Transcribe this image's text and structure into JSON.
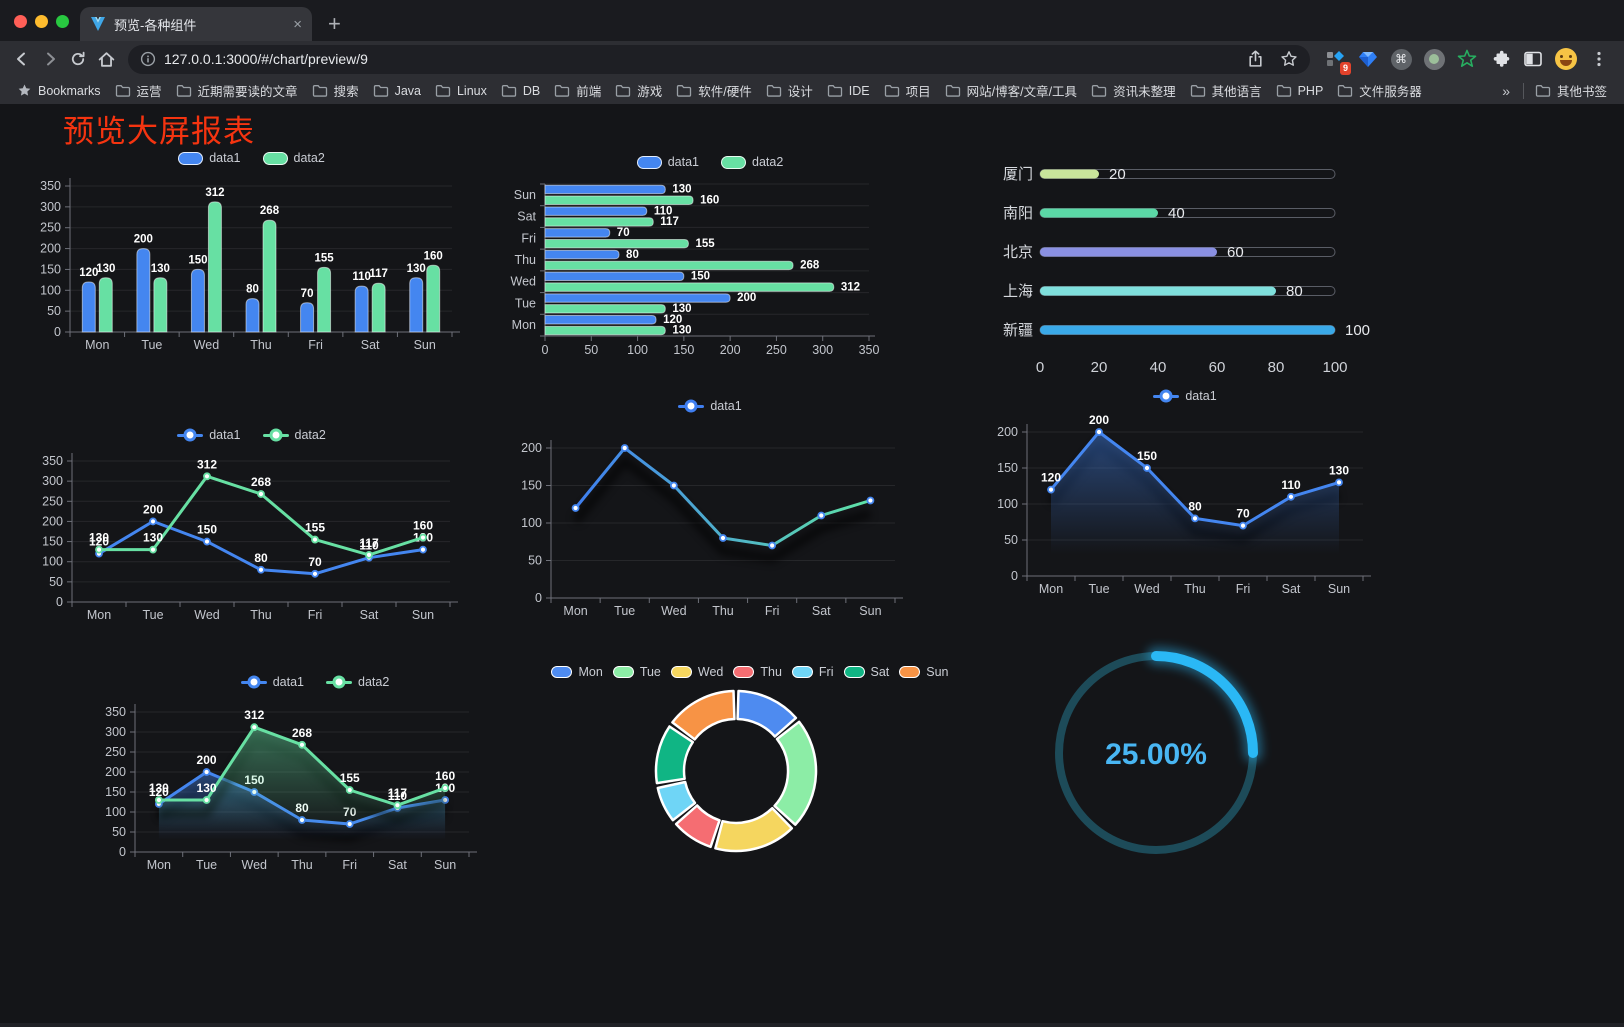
{
  "browser": {
    "tab": {
      "title": "预览-各种组件",
      "close_glyph": "×",
      "new_tab_glyph": "+"
    },
    "url": "127.0.0.1:3000/#/chart/preview/9",
    "extensions_badge": "9",
    "bookmarks_label": "Bookmarks",
    "bookmarks": [
      "运营",
      "近期需要读的文章",
      "搜索",
      "Java",
      "Linux",
      "DB",
      "前端",
      "游戏",
      "软件/硬件",
      "设计",
      "IDE",
      "项目",
      "网站/博客/文章/工具",
      "资讯未整理",
      "其他语言",
      "PHP",
      "文件服务器"
    ],
    "bookmarks_overflow": "»",
    "other_bookmarks": "其他书签"
  },
  "page": {
    "title": "预览大屏报表",
    "title_color": "#f53410",
    "background": "#141518"
  },
  "colors": {
    "data1": "#4486f0",
    "data2": "#67e0a3",
    "axis": "#6E7079",
    "tick_label": "#c3c6cd"
  },
  "chart_data": [
    {
      "id": "bar-grouped",
      "type": "bar",
      "categories": [
        "Mon",
        "Tue",
        "Wed",
        "Thu",
        "Fri",
        "Sat",
        "Sun"
      ],
      "series": [
        {
          "name": "data1",
          "color": "#4486f0",
          "values": [
            120,
            200,
            150,
            80,
            70,
            110,
            130
          ]
        },
        {
          "name": "data2",
          "color": "#67e0a3",
          "values": [
            130,
            130,
            312,
            268,
            155,
            117,
            160
          ]
        }
      ],
      "ylim": [
        0,
        350
      ],
      "yticks": [
        0,
        50,
        100,
        150,
        200,
        250,
        300,
        350
      ],
      "legend_position": "top",
      "value_labels": true,
      "grid": true
    },
    {
      "id": "bar-horizontal",
      "type": "bar",
      "orientation": "horizontal",
      "categories": [
        "Mon",
        "Tue",
        "Wed",
        "Thu",
        "Fri",
        "Sat",
        "Sun"
      ],
      "display_order_top_to_bottom": [
        "Sun",
        "Sat",
        "Fri",
        "Thu",
        "Wed",
        "Tue",
        "Mon"
      ],
      "series": [
        {
          "name": "data1",
          "color": "#4486f0",
          "values": [
            120,
            200,
            150,
            80,
            70,
            110,
            130
          ]
        },
        {
          "name": "data2",
          "color": "#67e0a3",
          "values": [
            130,
            130,
            312,
            268,
            155,
            117,
            160
          ]
        }
      ],
      "xlim": [
        0,
        350
      ],
      "xticks": [
        0,
        50,
        100,
        150,
        200,
        250,
        300,
        350
      ],
      "legend_position": "top",
      "value_labels": true
    },
    {
      "id": "progress-list",
      "type": "bar",
      "orientation": "horizontal-progress",
      "max": 100,
      "rows": [
        {
          "label": "厦门",
          "value": 20,
          "color": "#c9e59b"
        },
        {
          "label": "南阳",
          "value": 40,
          "color": "#5bd8a6"
        },
        {
          "label": "北京",
          "value": 60,
          "color": "#8a90e2"
        },
        {
          "label": "上海",
          "value": 80,
          "color": "#7fdfdc"
        },
        {
          "label": "新疆",
          "value": 100,
          "color": "#3aa9e8"
        }
      ],
      "xticks": [
        0,
        20,
        40,
        60,
        80,
        100
      ]
    },
    {
      "id": "line-two-series",
      "type": "line",
      "categories": [
        "Mon",
        "Tue",
        "Wed",
        "Thu",
        "Fri",
        "Sat",
        "Sun"
      ],
      "series": [
        {
          "name": "data1",
          "color": "#4486f0",
          "values": [
            120,
            200,
            150,
            80,
            70,
            110,
            130
          ]
        },
        {
          "name": "data2",
          "color": "#67e0a3",
          "values": [
            130,
            130,
            312,
            268,
            155,
            117,
            160
          ]
        }
      ],
      "ylim": [
        0,
        350
      ],
      "yticks": [
        0,
        50,
        100,
        150,
        200,
        250,
        300,
        350
      ],
      "legend_position": "top",
      "value_labels": true,
      "shadow": false
    },
    {
      "id": "line-gradient",
      "type": "line",
      "categories": [
        "Mon",
        "Tue",
        "Wed",
        "Thu",
        "Fri",
        "Sat",
        "Sun"
      ],
      "series": [
        {
          "name": "data1",
          "gradient": [
            "#3f7ef0",
            "#5fe3a6"
          ],
          "marker_color": "#4486f0",
          "values": [
            120,
            200,
            150,
            80,
            70,
            110,
            130
          ]
        }
      ],
      "ylim": [
        0,
        200
      ],
      "yticks": [
        0,
        50,
        100,
        150,
        200
      ],
      "legend_position": "top",
      "value_labels": false,
      "shadow": true
    },
    {
      "id": "line-area",
      "type": "area",
      "categories": [
        "Mon",
        "Tue",
        "Wed",
        "Thu",
        "Fri",
        "Sat",
        "Sun"
      ],
      "series": [
        {
          "name": "data1",
          "color": "#4486f0",
          "area": true,
          "values": [
            120,
            200,
            150,
            80,
            70,
            110,
            130
          ]
        }
      ],
      "ylim": [
        0,
        200
      ],
      "yticks": [
        0,
        50,
        100,
        150,
        200
      ],
      "legend_position": "top",
      "value_labels": true,
      "shadow": true
    },
    {
      "id": "line-area-two",
      "type": "area",
      "categories": [
        "Mon",
        "Tue",
        "Wed",
        "Thu",
        "Fri",
        "Sat",
        "Sun"
      ],
      "series": [
        {
          "name": "data1",
          "color": "#4486f0",
          "area": true,
          "values": [
            120,
            200,
            150,
            80,
            70,
            110,
            130
          ]
        },
        {
          "name": "data2",
          "color": "#67e0a3",
          "area": true,
          "values": [
            130,
            130,
            312,
            268,
            155,
            117,
            160
          ]
        }
      ],
      "ylim": [
        0,
        350
      ],
      "yticks": [
        0,
        50,
        100,
        150,
        200,
        250,
        300,
        350
      ],
      "legend_position": "top",
      "value_labels": true,
      "shadow": true
    },
    {
      "id": "donut",
      "type": "pie",
      "legend_position": "top",
      "items": [
        {
          "name": "Mon",
          "value": 120,
          "color": "#4e8bf0"
        },
        {
          "name": "Tue",
          "value": 200,
          "color": "#8ceda6"
        },
        {
          "name": "Wed",
          "value": 150,
          "color": "#f5d65f"
        },
        {
          "name": "Thu",
          "value": 80,
          "color": "#f56d72"
        },
        {
          "name": "Fri",
          "value": 70,
          "color": "#6fd5f6"
        },
        {
          "name": "Sat",
          "value": 110,
          "color": "#10b584"
        },
        {
          "name": "Sun",
          "value": 130,
          "color": "#f79345"
        }
      ]
    },
    {
      "id": "gauge",
      "type": "gauge",
      "value_percent": 25,
      "display": "25.00%",
      "color": "#2ab8f5",
      "track_color": "#1d4b59",
      "text_color": "#49b6f3"
    }
  ]
}
